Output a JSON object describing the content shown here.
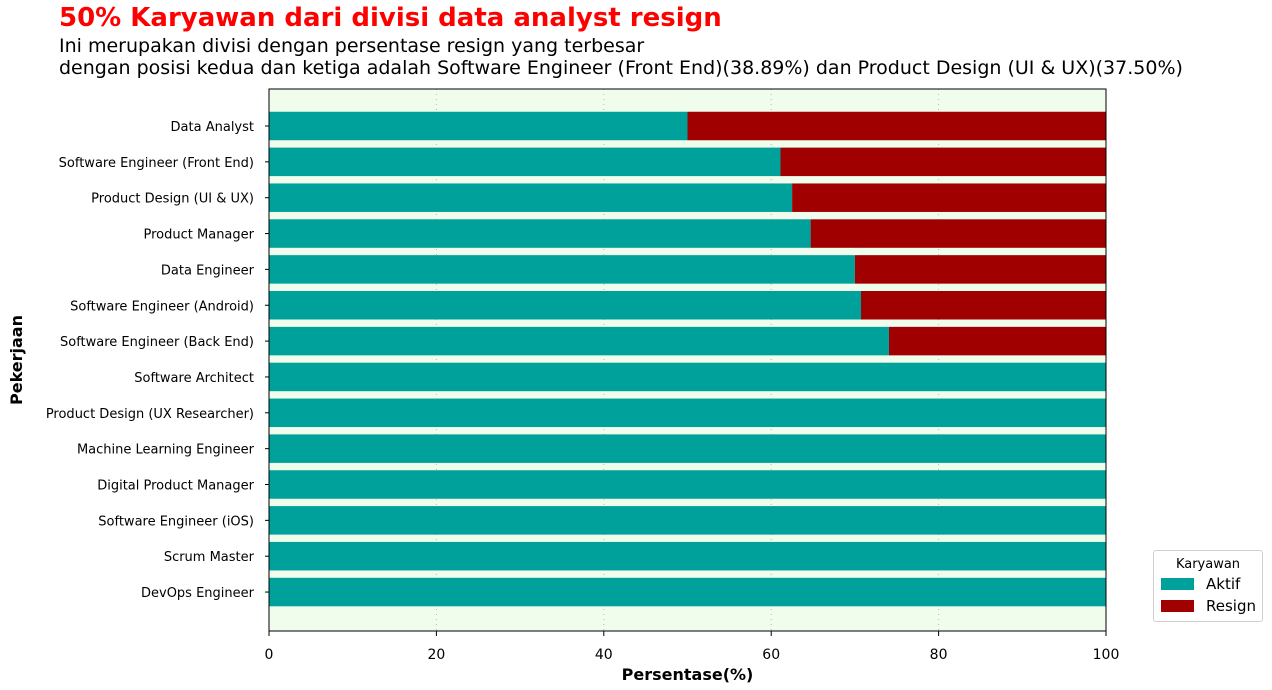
{
  "header": {
    "title": "50% Karyawan dari divisi data analyst resign",
    "subtitle_line1": "Ini merupakan divisi dengan persentase resign yang terbesar",
    "subtitle_line2": "dengan posisi kedua dan ketiga adalah Software Engineer (Front End)(38.89%) dan Product Design (UI & UX)(37.50%)"
  },
  "colors": {
    "aktif": "#00a19a",
    "resign": "#a00000",
    "plot_bg": "#f0fdec",
    "title": "#ff0000"
  },
  "chart_data": {
    "type": "bar",
    "orientation": "horizontal",
    "stacked": true,
    "categories": [
      "Data Analyst",
      "Software Engineer (Front End)",
      "Product Design (UI & UX)",
      "Product Manager",
      "Data Engineer",
      "Software Engineer (Android)",
      "Software Engineer (Back End)",
      "Software Architect",
      "Product Design (UX Researcher)",
      "Machine Learning Engineer",
      "Digital Product Manager",
      "Software Engineer (iOS)",
      "Scrum Master",
      "DevOps Engineer"
    ],
    "series": [
      {
        "name": "Aktif",
        "values": [
          50.0,
          61.11,
          62.5,
          64.71,
          70.0,
          70.73,
          74.07,
          100,
          100,
          100,
          100,
          100,
          100,
          100
        ]
      },
      {
        "name": "Resign",
        "values": [
          50.0,
          38.89,
          37.5,
          35.29,
          30.0,
          29.27,
          25.93,
          0,
          0,
          0,
          0,
          0,
          0,
          0
        ]
      }
    ],
    "xlabel": "Persentase(%)",
    "ylabel": "Pekerjaan",
    "xlim": [
      0,
      100
    ],
    "xticks": [
      0,
      20,
      40,
      60,
      80,
      100
    ],
    "grid": "vertical dotted",
    "legend_title": "Karyawan",
    "legend_position": "lower-right outside"
  }
}
